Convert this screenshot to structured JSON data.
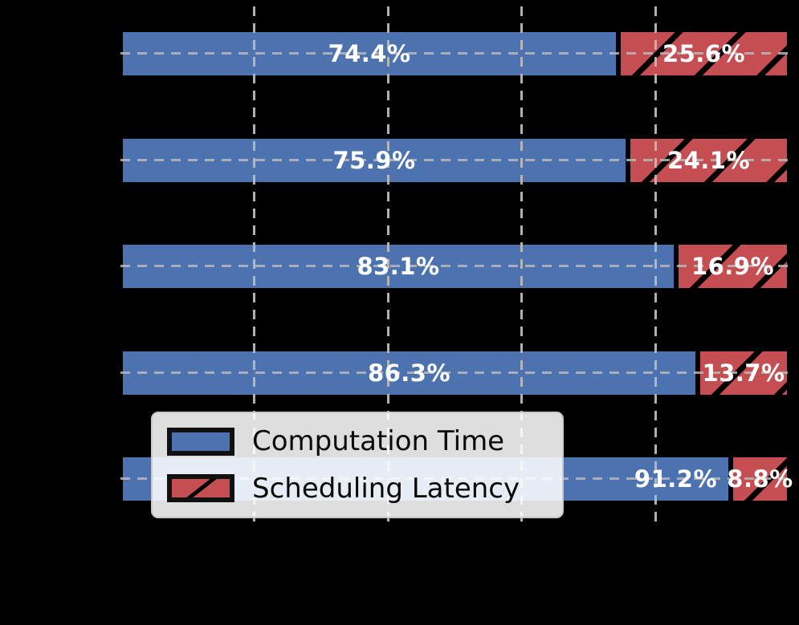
{
  "chart_data": {
    "type": "bar",
    "orientation": "horizontal",
    "stacked": true,
    "unit": "percent",
    "xlim": [
      0,
      100
    ],
    "x_gridlines_pct": [
      20,
      40,
      60,
      80
    ],
    "grid_style": "dashed",
    "grid_color": "#b9b9b9",
    "categories": [
      "",
      "",
      "",
      "",
      ""
    ],
    "series": [
      {
        "name": "Computation Time",
        "color": "#4C72B0",
        "values": [
          74.4,
          75.9,
          83.1,
          86.3,
          91.2
        ],
        "labels": [
          "74.4%",
          "75.9%",
          "83.1%",
          "86.3%",
          "91.2%"
        ]
      },
      {
        "name": "Scheduling Latency",
        "color": "#C44E52",
        "hatch": "/",
        "values": [
          25.6,
          24.1,
          16.9,
          13.7,
          8.8
        ],
        "labels": [
          "25.6%",
          "24.1%",
          "16.9%",
          "13.7%",
          "8.8%"
        ]
      }
    ],
    "legend": {
      "position": "lower-left",
      "entries": [
        "Computation Time",
        "Scheduling Latency"
      ]
    }
  },
  "colors": {
    "background": "#000000",
    "bar_label_text": "#ffffff",
    "bar_edge": "#000000",
    "legend_background": "rgba(255,255,255,0.87)",
    "legend_border": "#c6cacd",
    "legend_text": "#0a0a0a"
  }
}
